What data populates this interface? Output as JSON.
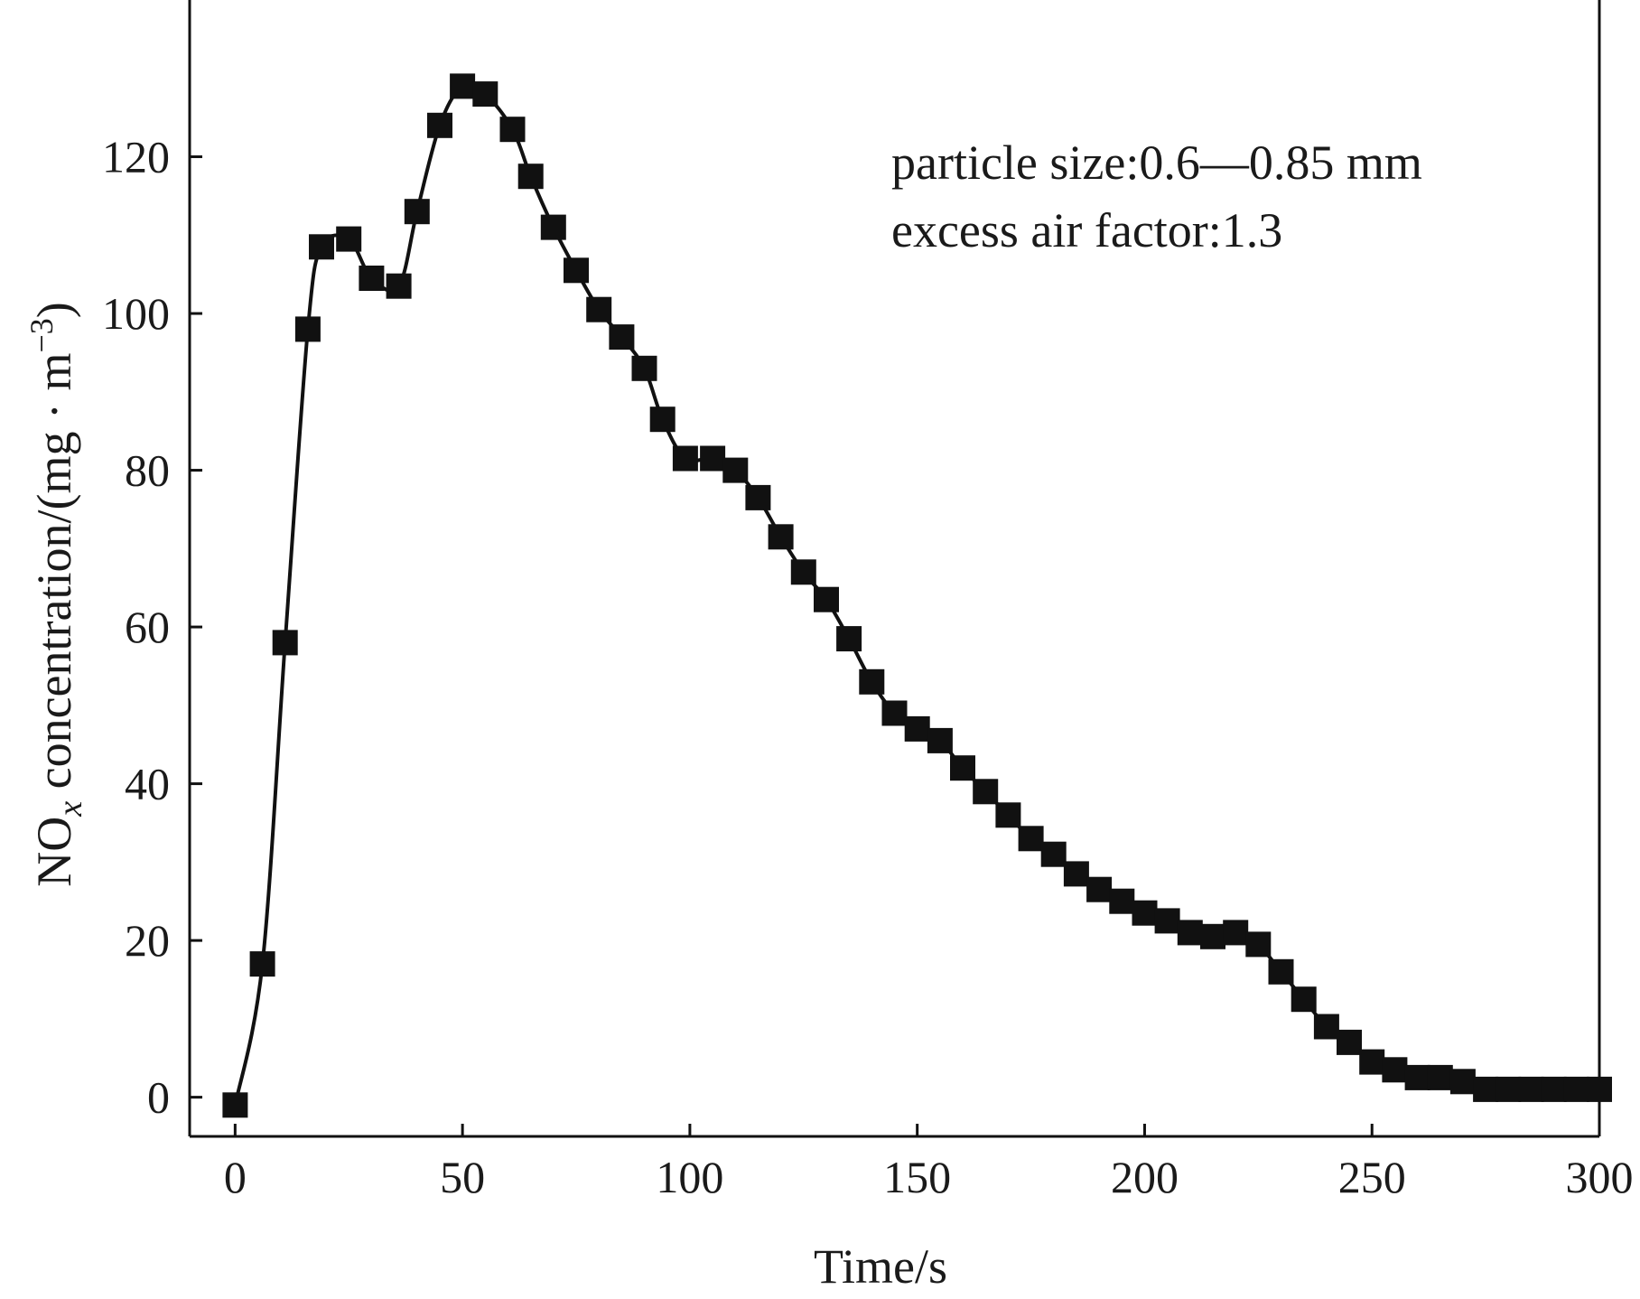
{
  "chart_data": {
    "type": "line",
    "title": "",
    "xlabel": "Time/s",
    "ylabel": {
      "base": "NO",
      "subscript": "x",
      "mid": " concentration/(mg · m",
      "superscript": "−3",
      "end": ")"
    },
    "xlim": [
      -10,
      300
    ],
    "ylim": [
      -5,
      140
    ],
    "xticks": [
      0,
      50,
      100,
      150,
      200,
      250,
      300
    ],
    "yticks": [
      0,
      20,
      40,
      60,
      80,
      100,
      120
    ],
    "xtick_labels": [
      "0",
      "50",
      "100",
      "150",
      "200",
      "250",
      "300"
    ],
    "ytick_labels": [
      "0",
      "20",
      "40",
      "60",
      "80",
      "100",
      "120"
    ],
    "grid": false,
    "annotations": [
      "particle size:0.6—0.85 mm",
      "excess air factor:1.3"
    ],
    "series": [
      {
        "marker": "square",
        "color": "#111111",
        "x": [
          0,
          6,
          11,
          16,
          19,
          25,
          30,
          36,
          40,
          45,
          50,
          55,
          61,
          65,
          70,
          75,
          80,
          85,
          90,
          94,
          99,
          105,
          110,
          115,
          120,
          125,
          130,
          135,
          140,
          145,
          150,
          155,
          160,
          165,
          170,
          175,
          180,
          185,
          190,
          195,
          200,
          205,
          210,
          215,
          220,
          225,
          230,
          235,
          240,
          245,
          250,
          255,
          260,
          265,
          270,
          275,
          280,
          285,
          290,
          295,
          300
        ],
        "y": [
          -1,
          17,
          58,
          98,
          108.5,
          109.5,
          104.5,
          103.5,
          113,
          124,
          129,
          128,
          123.5,
          117.5,
          111,
          105.5,
          100.5,
          97,
          93,
          86.5,
          81.5,
          81.5,
          80,
          76.5,
          71.5,
          67,
          63.5,
          58.5,
          53,
          49,
          47,
          45.5,
          42,
          39,
          36,
          33,
          31,
          28.5,
          26.5,
          25,
          23.5,
          22.5,
          21,
          20.5,
          21,
          19.5,
          16,
          12.5,
          9,
          7,
          4.5,
          3.5,
          2.5,
          2.5,
          2,
          1,
          1,
          1,
          1,
          1,
          1
        ]
      }
    ]
  }
}
